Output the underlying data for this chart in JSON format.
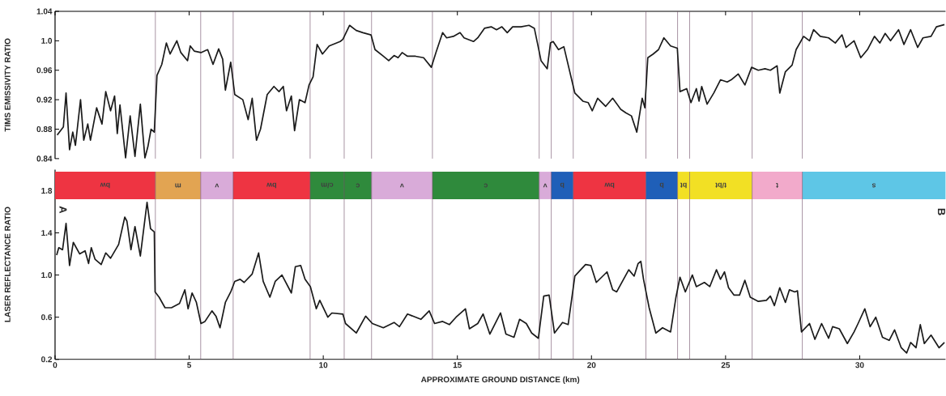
{
  "chart_data": [
    {
      "type": "line",
      "ylabel": "TIMS EMISSIVITY RATIO",
      "xlim": [
        0,
        33.2
      ],
      "ylim": [
        0.84,
        1.04
      ],
      "xticks": [
        {
          "value": 0,
          "label": null
        },
        {
          "value": 5,
          "label": null
        },
        {
          "value": 10,
          "label": null
        },
        {
          "value": 15,
          "label": null
        },
        {
          "value": 20,
          "label": null
        },
        {
          "value": 25,
          "label": null
        },
        {
          "value": 30,
          "label": null
        }
      ],
      "yticks": [
        0.84,
        0.88,
        0.92,
        0.96,
        {
          "value": 1.0,
          "label": "1.0"
        },
        1.04
      ],
      "tick_labels": "y",
      "series": [
        {
          "color": "#1a1a1a",
          "x": [
            0.08,
            0.31,
            0.41,
            0.54,
            0.66,
            0.76,
            0.95,
            1.07,
            1.22,
            1.32,
            1.55,
            1.75,
            1.89,
            2.07,
            2.22,
            2.32,
            2.42,
            2.63,
            2.8,
            2.98,
            3.18,
            3.35,
            3.46,
            3.58,
            3.7,
            3.8,
            3.98,
            4.15,
            4.29,
            4.54,
            4.69,
            4.94,
            5.04,
            5.19,
            5.44,
            5.69,
            5.89,
            6.1,
            6.25,
            6.35,
            6.55,
            6.7,
            7.0,
            7.2,
            7.35,
            7.51,
            7.66,
            7.91,
            8.16,
            8.35,
            8.51,
            8.63,
            8.81,
            8.93,
            9.11,
            9.32,
            9.47,
            9.62,
            9.77,
            9.97,
            10.22,
            10.63,
            10.73,
            10.98,
            11.23,
            11.48,
            11.78,
            11.93,
            12.24,
            12.44,
            12.64,
            12.79,
            12.94,
            13.14,
            13.44,
            13.74,
            14.03,
            14.2,
            14.45,
            14.6,
            14.85,
            15.1,
            15.25,
            15.6,
            15.76,
            16.01,
            16.26,
            16.46,
            16.66,
            16.86,
            17.06,
            17.37,
            17.67,
            17.87,
            18.12,
            18.35,
            18.47,
            18.57,
            18.77,
            18.97,
            19.38,
            19.68,
            19.88,
            20.03,
            20.23,
            20.53,
            20.79,
            21.09,
            21.29,
            21.49,
            21.69,
            21.89,
            21.99,
            22.1,
            22.3,
            22.5,
            22.7,
            22.95,
            23.2,
            23.3,
            23.55,
            23.71,
            23.91,
            24.01,
            24.11,
            24.31,
            24.56,
            24.81,
            25.06,
            25.21,
            25.47,
            25.72,
            25.97,
            26.22,
            26.47,
            26.67,
            26.92,
            27.02,
            27.23,
            27.48,
            27.63,
            27.91,
            28.13,
            28.28,
            28.53,
            28.84,
            29.09,
            29.34,
            29.49,
            29.79,
            30.04,
            30.29,
            30.55,
            30.75,
            30.95,
            31.15,
            31.45,
            31.65,
            31.9,
            32.16,
            32.36,
            32.66,
            32.86,
            33.16
          ],
          "values": [
            0.872,
            0.883,
            0.929,
            0.852,
            0.876,
            0.858,
            0.92,
            0.865,
            0.887,
            0.865,
            0.909,
            0.887,
            0.931,
            0.905,
            0.925,
            0.874,
            0.913,
            0.841,
            0.898,
            0.843,
            0.914,
            0.841,
            0.856,
            0.88,
            0.876,
            0.953,
            0.968,
            0.997,
            0.982,
            1.0,
            0.984,
            0.973,
            0.993,
            0.986,
            0.984,
            0.988,
            0.968,
            0.989,
            0.975,
            0.933,
            0.971,
            0.927,
            0.92,
            0.893,
            0.922,
            0.865,
            0.88,
            0.927,
            0.938,
            0.931,
            0.938,
            0.905,
            0.925,
            0.878,
            0.92,
            0.916,
            0.94,
            0.951,
            0.995,
            0.982,
            0.993,
            0.999,
            1.002,
            1.021,
            1.014,
            1.011,
            1.008,
            0.988,
            0.979,
            0.973,
            0.98,
            0.977,
            0.984,
            0.979,
            0.979,
            0.977,
            0.964,
            0.984,
            1.011,
            1.004,
            1.006,
            1.011,
            1.004,
            0.999,
            1.004,
            1.017,
            1.019,
            1.015,
            1.019,
            1.011,
            1.019,
            1.019,
            1.021,
            1.017,
            0.973,
            0.962,
            0.997,
            0.999,
            0.988,
            0.992,
            0.929,
            0.918,
            0.916,
            0.905,
            0.922,
            0.911,
            0.922,
            0.907,
            0.902,
            0.898,
            0.876,
            0.922,
            0.909,
            0.977,
            0.982,
            0.988,
            1.004,
            0.993,
            0.99,
            0.931,
            0.935,
            0.916,
            0.935,
            0.918,
            0.938,
            0.914,
            0.929,
            0.947,
            0.944,
            0.947,
            0.955,
            0.94,
            0.964,
            0.96,
            0.962,
            0.96,
            0.966,
            0.929,
            0.958,
            0.967,
            0.988,
            1.006,
            1.0,
            1.015,
            1.006,
            1.004,
            0.997,
            1.008,
            0.991,
            1.0,
            0.977,
            0.988,
            1.006,
            0.997,
            1.01,
            1.0,
            1.015,
            0.995,
            1.015,
            0.991,
            1.004,
            1.006,
            1.019,
            1.022
          ]
        }
      ],
      "ref_lines": [
        {
          "axis": "x",
          "value": 3.74,
          "color": "#6e4a66"
        },
        {
          "axis": "x",
          "value": 5.43,
          "color": "#6e4a66"
        },
        {
          "axis": "x",
          "value": 6.64,
          "color": "#6e4a66"
        },
        {
          "axis": "x",
          "value": 9.51,
          "color": "#6e4a66"
        },
        {
          "axis": "x",
          "value": 10.78,
          "color": "#6e4a66"
        },
        {
          "axis": "x",
          "value": 11.8,
          "color": "#6e4a66"
        },
        {
          "axis": "x",
          "value": 14.07,
          "color": "#6e4a66"
        },
        {
          "axis": "x",
          "value": 18.05,
          "color": "#6e4a66"
        },
        {
          "axis": "x",
          "value": 18.5,
          "color": "#6e4a66"
        },
        {
          "axis": "x",
          "value": 19.32,
          "color": "#6e4a66"
        },
        {
          "axis": "x",
          "value": 22.03,
          "color": "#6e4a66"
        },
        {
          "axis": "x",
          "value": 23.21,
          "color": "#6e4a66"
        },
        {
          "axis": "x",
          "value": 23.66,
          "color": "#6e4a66"
        },
        {
          "axis": "x",
          "value": 25.99,
          "color": "#6e4a66"
        },
        {
          "axis": "x",
          "value": 27.86,
          "color": "#6e4a66"
        }
      ]
    },
    {
      "type": "line",
      "ylabel": "LASER REFLECTANCE RATIO",
      "xlabel": "APPROXIMATE GROUND DISTANCE (km)",
      "xlim": [
        0,
        33.2
      ],
      "ylim": [
        0.2,
        2.0
      ],
      "xticks": [
        0,
        5,
        10,
        15,
        20,
        25,
        30
      ],
      "yticks": [
        0.2,
        0.6,
        {
          "value": 1.0,
          "label": "1.0"
        },
        1.4,
        1.8
      ],
      "annotations": [
        "A",
        "B"
      ],
      "series": [
        {
          "color": "#1a1a1a",
          "x": [
            0.06,
            0.14,
            0.28,
            0.41,
            0.54,
            0.68,
            0.92,
            1.12,
            1.25,
            1.35,
            1.49,
            1.72,
            1.89,
            2.07,
            2.37,
            2.6,
            2.68,
            2.83,
            2.98,
            3.18,
            3.43,
            3.56,
            3.7,
            3.73,
            3.88,
            4.1,
            4.34,
            4.64,
            4.84,
            4.96,
            5.11,
            5.27,
            5.44,
            5.59,
            5.85,
            6.0,
            6.15,
            6.35,
            6.55,
            6.7,
            6.9,
            7.05,
            7.35,
            7.59,
            7.76,
            8.01,
            8.21,
            8.46,
            8.81,
            8.96,
            9.16,
            9.32,
            9.52,
            9.74,
            9.87,
            10.17,
            10.32,
            10.73,
            10.83,
            11.23,
            11.58,
            11.83,
            12.24,
            12.64,
            12.84,
            13.14,
            13.64,
            13.95,
            14.15,
            14.45,
            14.7,
            14.95,
            15.3,
            15.45,
            15.76,
            15.96,
            16.21,
            16.61,
            16.81,
            17.11,
            17.32,
            17.57,
            17.77,
            18.02,
            18.22,
            18.42,
            18.62,
            18.92,
            19.13,
            19.38,
            19.78,
            19.98,
            20.18,
            20.58,
            20.79,
            20.94,
            21.39,
            21.59,
            21.74,
            21.84,
            21.94,
            22.15,
            22.4,
            22.65,
            22.95,
            23.15,
            23.3,
            23.5,
            23.76,
            23.91,
            24.21,
            24.41,
            24.66,
            24.81,
            24.96,
            25.11,
            25.31,
            25.52,
            25.72,
            25.92,
            26.22,
            26.52,
            26.67,
            26.82,
            27.02,
            27.23,
            27.38,
            27.58,
            27.68,
            27.83,
            28.13,
            28.33,
            28.58,
            28.84,
            28.99,
            29.24,
            29.54,
            29.79,
            29.94,
            30.19,
            30.39,
            30.6,
            30.85,
            31.1,
            31.3,
            31.55,
            31.75,
            31.9,
            32.1,
            32.26,
            32.41,
            32.66,
            32.96,
            33.16
          ],
          "values": [
            1.19,
            1.26,
            1.24,
            1.49,
            1.09,
            1.31,
            1.2,
            1.23,
            1.11,
            1.26,
            1.15,
            1.1,
            1.21,
            1.16,
            1.29,
            1.55,
            1.51,
            1.24,
            1.46,
            1.18,
            1.69,
            1.44,
            1.41,
            0.84,
            0.79,
            0.69,
            0.69,
            0.73,
            0.86,
            0.68,
            0.83,
            0.74,
            0.54,
            0.56,
            0.66,
            0.61,
            0.5,
            0.74,
            0.84,
            0.94,
            0.96,
            0.93,
            1.01,
            1.21,
            0.94,
            0.79,
            0.94,
            1.0,
            0.83,
            1.08,
            1.09,
            0.96,
            0.89,
            0.68,
            0.76,
            0.6,
            0.64,
            0.63,
            0.54,
            0.45,
            0.61,
            0.54,
            0.5,
            0.55,
            0.51,
            0.63,
            0.58,
            0.66,
            0.54,
            0.56,
            0.53,
            0.6,
            0.68,
            0.49,
            0.54,
            0.63,
            0.44,
            0.64,
            0.44,
            0.41,
            0.58,
            0.54,
            0.45,
            0.4,
            0.8,
            0.81,
            0.45,
            0.55,
            0.53,
            0.99,
            1.1,
            1.09,
            0.93,
            1.03,
            0.86,
            0.84,
            1.05,
            0.99,
            1.11,
            1.13,
            0.96,
            0.69,
            0.45,
            0.5,
            0.46,
            0.79,
            0.98,
            0.84,
            1.0,
            0.89,
            0.93,
            0.89,
            1.05,
            0.96,
            1.03,
            0.88,
            0.81,
            0.81,
            0.95,
            0.79,
            0.75,
            0.76,
            0.8,
            0.71,
            0.88,
            0.74,
            0.86,
            0.84,
            0.85,
            0.46,
            0.54,
            0.39,
            0.54,
            0.4,
            0.51,
            0.49,
            0.35,
            0.46,
            0.54,
            0.68,
            0.51,
            0.6,
            0.41,
            0.38,
            0.48,
            0.31,
            0.26,
            0.36,
            0.31,
            0.53,
            0.35,
            0.43,
            0.31,
            0.36
          ]
        }
      ],
      "bands": [
        {
          "axis": "x",
          "from": 0,
          "to": 3.74,
          "label": "bw",
          "color": "#ee3442"
        },
        {
          "axis": "x",
          "from": 3.74,
          "to": 5.43,
          "label": "m",
          "color": "#e2a452"
        },
        {
          "axis": "x",
          "from": 5.43,
          "to": 6.64,
          "label": "v",
          "color": "#d9abd9"
        },
        {
          "axis": "x",
          "from": 6.64,
          "to": 9.51,
          "label": "bw",
          "color": "#ee3442"
        },
        {
          "axis": "x",
          "from": 9.51,
          "to": 10.78,
          "label": "c/m",
          "color": "#2f8a3c"
        },
        {
          "axis": "x",
          "from": 10.78,
          "to": 11.8,
          "label": "c",
          "color": "#2f8a3c"
        },
        {
          "axis": "x",
          "from": 11.8,
          "to": 14.07,
          "label": "v",
          "color": "#d9abd9"
        },
        {
          "axis": "x",
          "from": 14.07,
          "to": 18.05,
          "label": "c",
          "color": "#2f8a3c"
        },
        {
          "axis": "x",
          "from": 18.05,
          "to": 18.5,
          "label": "v",
          "color": "#d9abd9"
        },
        {
          "axis": "x",
          "from": 18.5,
          "to": 19.32,
          "label": "b",
          "color": "#1f5fb8"
        },
        {
          "axis": "x",
          "from": 19.32,
          "to": 22.03,
          "label": "bw",
          "color": "#ee3442"
        },
        {
          "axis": "x",
          "from": 22.03,
          "to": 23.21,
          "label": "b",
          "color": "#1f5fb8"
        },
        {
          "axis": "x",
          "from": 23.21,
          "to": 23.66,
          "label": "bt",
          "color": "#f2e024"
        },
        {
          "axis": "x",
          "from": 23.66,
          "to": 25.99,
          "label": "t/bt",
          "color": "#f2e024"
        },
        {
          "axis": "x",
          "from": 25.99,
          "to": 27.86,
          "label": "t",
          "color": "#f2aacb"
        },
        {
          "axis": "x",
          "from": 27.86,
          "to": 33.2,
          "label": "s",
          "color": "#5ec6e6"
        }
      ],
      "ref_lines": [
        {
          "axis": "x",
          "value": 3.74,
          "color": "#6e4a66"
        },
        {
          "axis": "x",
          "value": 5.43,
          "color": "#6e4a66"
        },
        {
          "axis": "x",
          "value": 6.64,
          "color": "#6e4a66"
        },
        {
          "axis": "x",
          "value": 9.51,
          "color": "#6e4a66"
        },
        {
          "axis": "x",
          "value": 10.78,
          "color": "#6e4a66"
        },
        {
          "axis": "x",
          "value": 11.8,
          "color": "#6e4a66"
        },
        {
          "axis": "x",
          "value": 14.07,
          "color": "#6e4a66"
        },
        {
          "axis": "x",
          "value": 18.05,
          "color": "#6e4a66"
        },
        {
          "axis": "x",
          "value": 18.5,
          "color": "#6e4a66"
        },
        {
          "axis": "x",
          "value": 19.32,
          "color": "#6e4a66"
        },
        {
          "axis": "x",
          "value": 22.03,
          "color": "#6e4a66"
        },
        {
          "axis": "x",
          "value": 23.21,
          "color": "#6e4a66"
        },
        {
          "axis": "x",
          "value": 23.66,
          "color": "#6e4a66"
        },
        {
          "axis": "x",
          "value": 25.99,
          "color": "#6e4a66"
        },
        {
          "axis": "x",
          "value": 27.86,
          "color": "#6e4a66"
        }
      ]
    }
  ]
}
